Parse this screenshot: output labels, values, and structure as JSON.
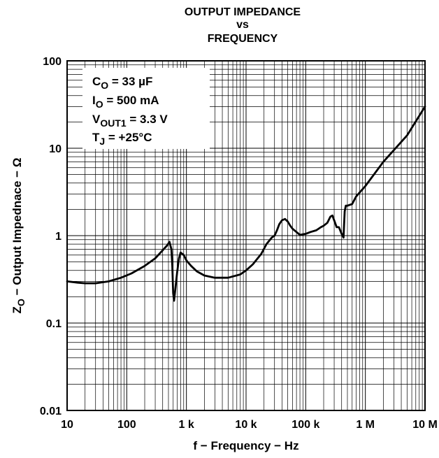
{
  "chart_data": {
    "type": "line",
    "title_lines": [
      "OUTPUT IMPEDANCE",
      "vs",
      "FREQUENCY"
    ],
    "xlabel": "f − Frequency − Hz",
    "ylabel": {
      "main": "Z",
      "sub": "O",
      "rest": " − Output Impednace − Ω"
    },
    "x_scale": "log",
    "y_scale": "log",
    "xlim": [
      10,
      10000000
    ],
    "ylim": [
      0.01,
      100
    ],
    "grid": true,
    "x_ticks": [
      {
        "value": 10,
        "label": "10"
      },
      {
        "value": 100,
        "label": "100"
      },
      {
        "value": 1000,
        "label": "1 k"
      },
      {
        "value": 10000,
        "label": "10 k"
      },
      {
        "value": 100000,
        "label": "100 k"
      },
      {
        "value": 1000000,
        "label": "1 M"
      },
      {
        "value": 10000000,
        "label": "10 M"
      }
    ],
    "y_ticks": [
      {
        "value": 100,
        "label": "100"
      },
      {
        "value": 10,
        "label": "10"
      },
      {
        "value": 1,
        "label": "1"
      },
      {
        "value": 0.1,
        "label": "0.1"
      },
      {
        "value": 0.01,
        "label": "0.01"
      }
    ],
    "conditions": [
      {
        "main": "C",
        "sub": "O",
        "rest": " = 33 µF"
      },
      {
        "main": "I",
        "sub": "O",
        "rest": " = 500 mA"
      },
      {
        "main": "V",
        "sub": "OUT1",
        "rest": " = 3.3 V"
      },
      {
        "main": "T",
        "sub": "J",
        "rest": " = +25°C"
      }
    ],
    "series": [
      {
        "x": [
          10,
          15,
          20,
          30,
          50,
          80,
          120,
          200,
          300,
          400,
          480,
          520,
          560,
          580,
          600,
          620,
          650,
          700,
          750,
          800,
          900,
          1000,
          1200,
          1500,
          2000,
          3000,
          5000,
          8000,
          10000,
          13000,
          18000,
          22000,
          27000,
          30000,
          33000,
          36000,
          40000,
          45000,
          50000,
          55000,
          60000,
          70000,
          80000,
          100000,
          120000,
          150000,
          180000,
          200000,
          230000,
          260000,
          280000,
          300000,
          330000,
          360000,
          400000,
          430000,
          450000,
          470000,
          500000,
          600000,
          700000,
          1000000,
          2000000,
          5000000,
          10000000
        ],
        "y": [
          0.3,
          0.29,
          0.285,
          0.285,
          0.3,
          0.33,
          0.37,
          0.45,
          0.55,
          0.68,
          0.78,
          0.85,
          0.7,
          0.45,
          0.22,
          0.18,
          0.24,
          0.38,
          0.55,
          0.64,
          0.6,
          0.52,
          0.45,
          0.39,
          0.35,
          0.33,
          0.33,
          0.36,
          0.4,
          0.47,
          0.62,
          0.8,
          0.95,
          1.0,
          1.15,
          1.35,
          1.5,
          1.55,
          1.45,
          1.3,
          1.2,
          1.1,
          1.02,
          1.05,
          1.1,
          1.15,
          1.25,
          1.3,
          1.4,
          1.65,
          1.7,
          1.5,
          1.25,
          1.25,
          1.05,
          0.95,
          1.9,
          2.2,
          2.2,
          2.3,
          2.8,
          3.7,
          7,
          14,
          30
        ]
      }
    ]
  }
}
